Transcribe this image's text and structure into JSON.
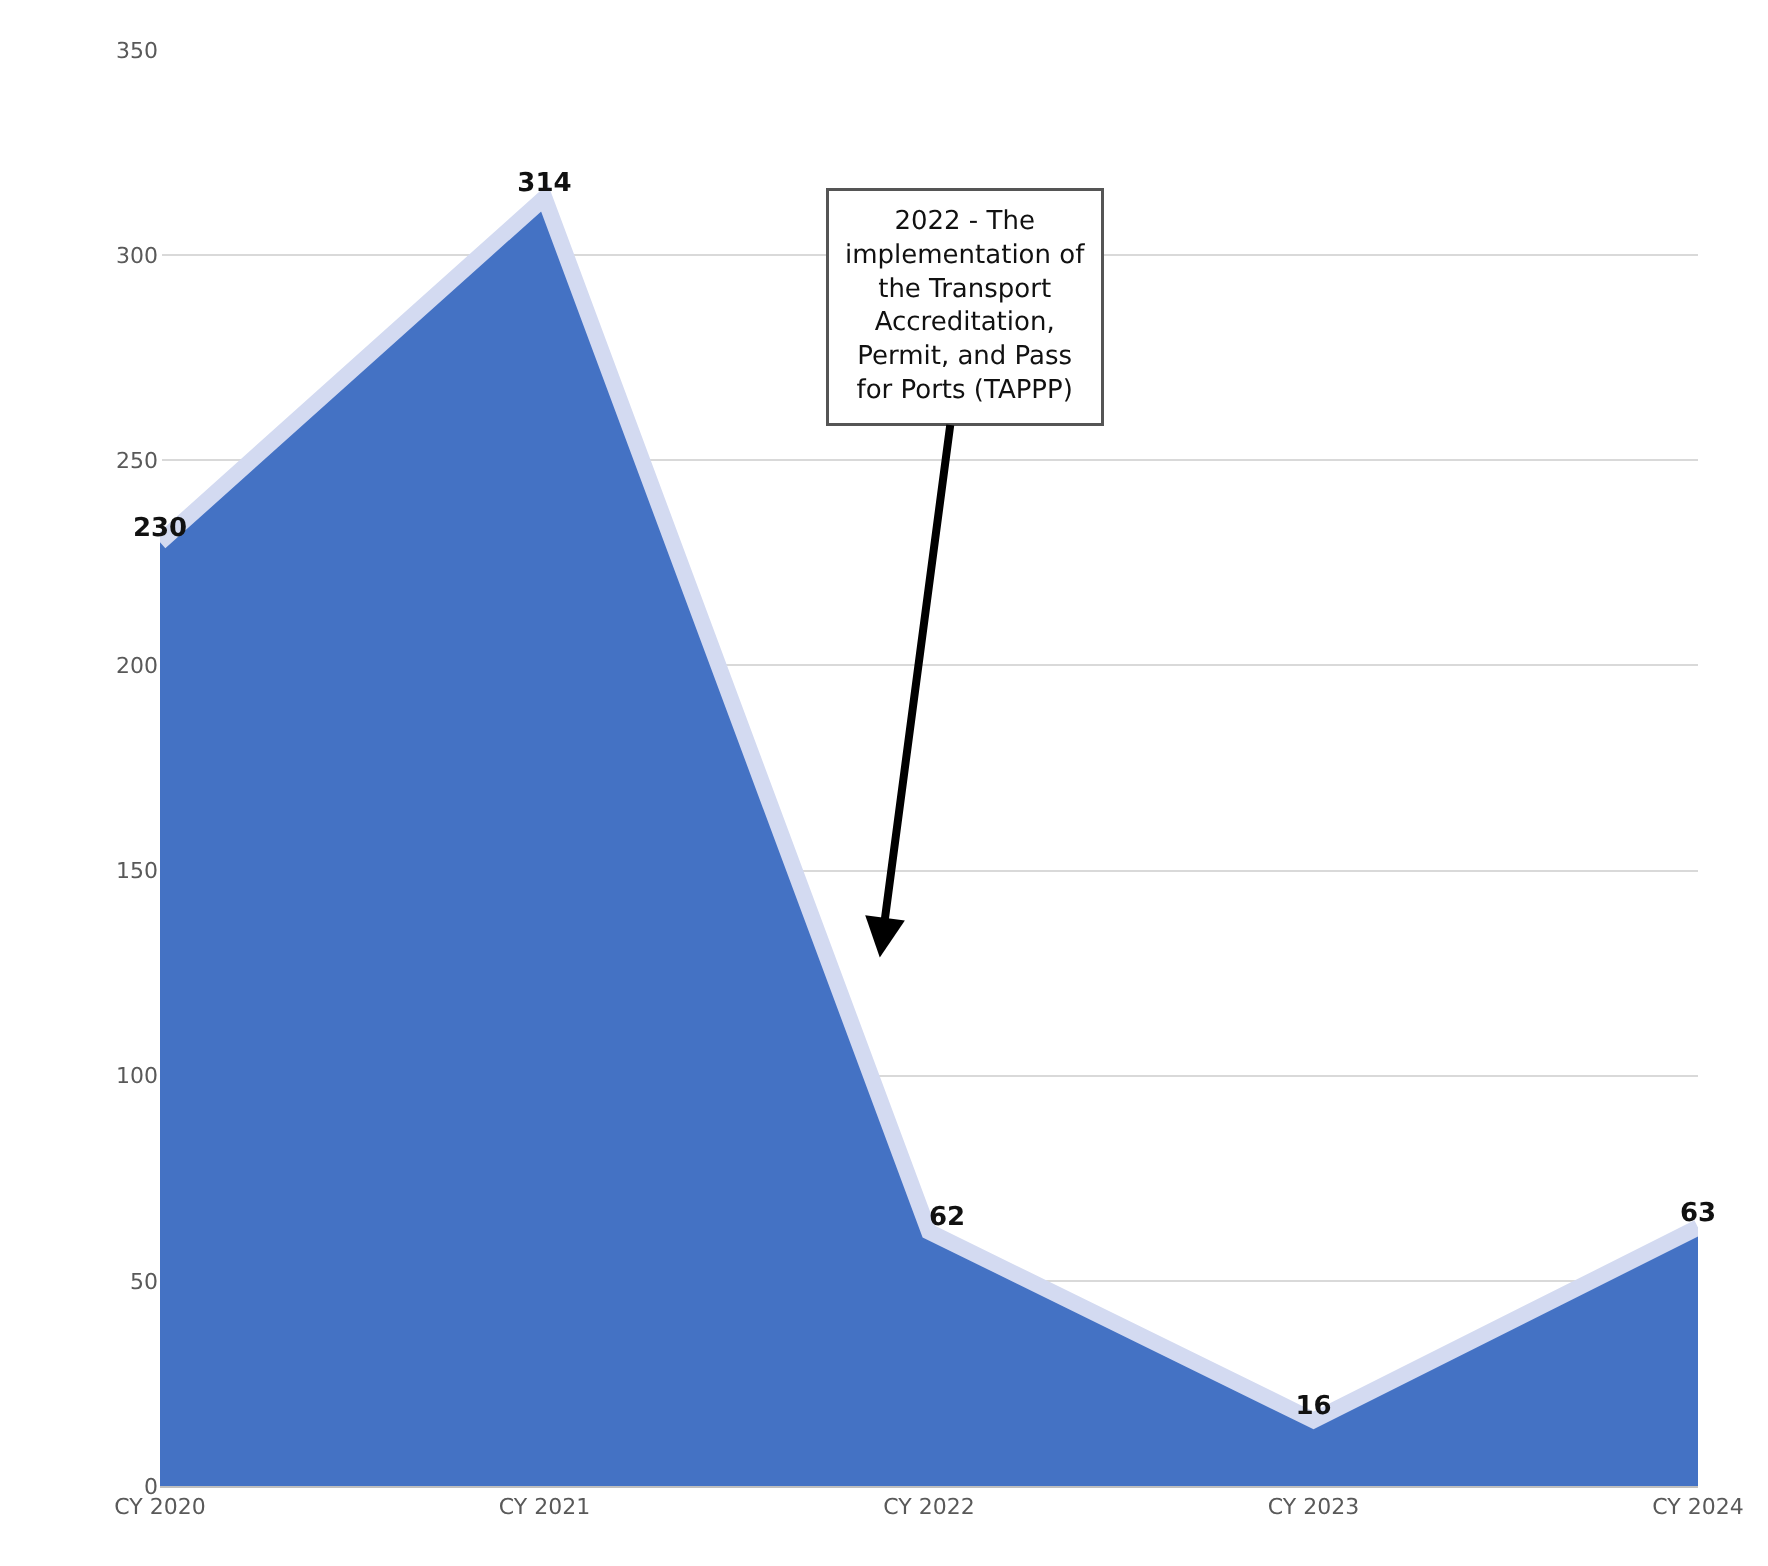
{
  "chart_data": {
    "type": "area",
    "categories": [
      "CY 2020",
      "CY 2021",
      "CY 2022",
      "CY 2023",
      "CY 2024"
    ],
    "series": [
      {
        "color": "#4472c4",
        "values": [
          230,
          314,
          62,
          16,
          63
        ]
      }
    ],
    "ylim": [
      0,
      350
    ],
    "yticks": [
      0,
      50,
      100,
      150,
      200,
      250,
      300,
      350
    ],
    "grid": "y",
    "legend": false,
    "data_labels": true,
    "marker": "none",
    "annotations": [
      "2022 - The implementation of the Transport Accreditation, Permit, and Pass for Ports (TAPPP)"
    ]
  }
}
